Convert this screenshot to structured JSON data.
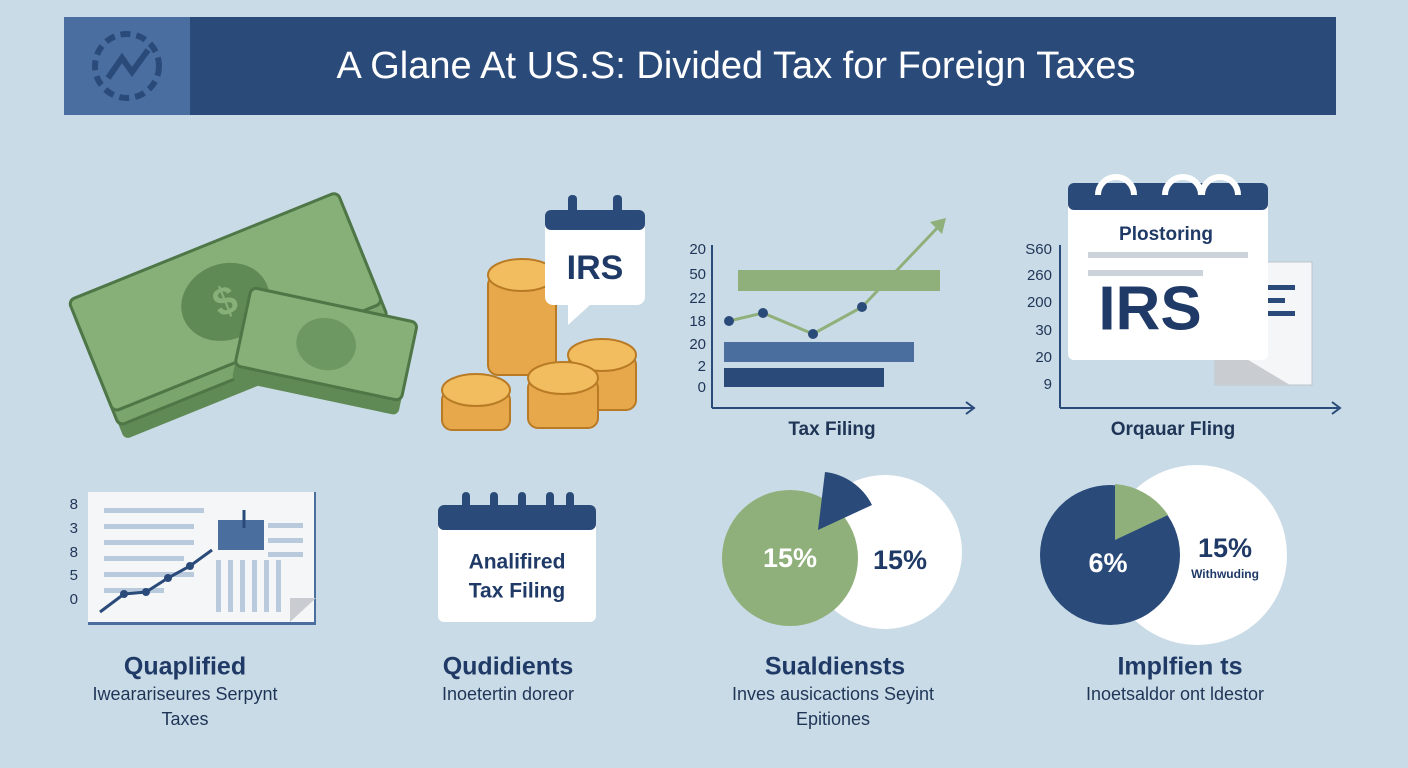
{
  "header": {
    "title": "A Glane At  US.S: Divided Tax for Foreign  Taxes"
  },
  "top": [
    {
      "badge": "IRS"
    },
    {
      "ticks": [
        "20",
        "50",
        "22",
        "18",
        "20",
        "2",
        "0"
      ],
      "caption": "Tax Filing"
    },
    {
      "card_title": "Plostoring",
      "card_text": "IRS",
      "ticks": [
        "S60",
        "260",
        "200",
        "30",
        "20",
        "9"
      ],
      "caption": "Orqauar Fling"
    }
  ],
  "bottom": [
    {
      "ticks": [
        "8",
        "3",
        "8",
        "5",
        "0"
      ],
      "title": "Quaplified",
      "description": [
        "Iwearariseures Serpynt",
        "Taxes"
      ]
    },
    {
      "card_lines": [
        "Analifired",
        "Tax Filing"
      ],
      "title": "Qudidients",
      "description": [
        "Inoetertin doreor"
      ]
    },
    {
      "labels": [
        "15%",
        "15%"
      ],
      "title": "Sualdiensts",
      "description": [
        "Inves ausicactions Seyint",
        "Epitiones"
      ]
    },
    {
      "labels": [
        "6%",
        "15%"
      ],
      "sublabel": "Withwuding",
      "title": "Implfien ts",
      "description": [
        "Inoetsaldor ont ldestor"
      ]
    }
  ]
}
